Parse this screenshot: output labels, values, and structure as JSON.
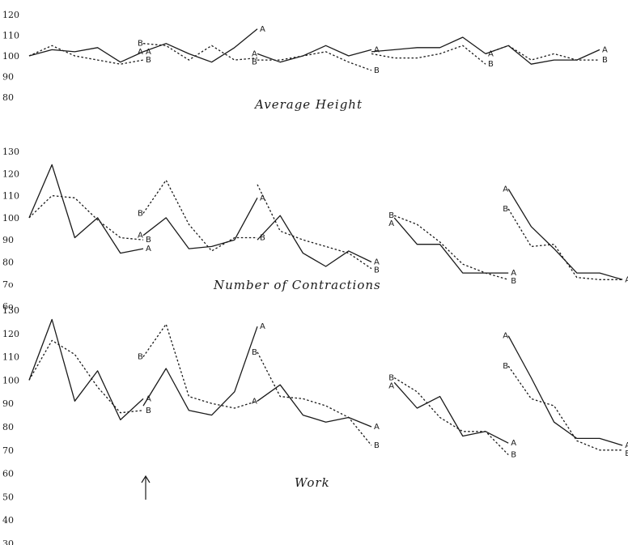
{
  "chart_data": [
    {
      "type": "line",
      "title": "Average Height",
      "yticks": [
        "120",
        "110",
        "100",
        "90",
        "80"
      ],
      "ylim": [
        80,
        120
      ],
      "segments": [
        {
          "x": [
            0,
            1,
            2,
            3,
            4,
            5
          ],
          "A": [
            100,
            103,
            102,
            104,
            97,
            102
          ],
          "B": [
            100,
            105,
            100,
            98,
            96,
            98
          ],
          "labels": {
            "end": [
              "A",
              "B"
            ]
          }
        },
        {
          "x": [
            5,
            6,
            7,
            8,
            9,
            10
          ],
          "A": [
            102,
            106,
            101,
            97,
            104,
            113
          ],
          "B": [
            106,
            105,
            98,
            105,
            98,
            99
          ],
          "labels": {
            "start": [
              "A",
              "B"
            ],
            "end": [
              "A"
            ]
          }
        },
        {
          "x": [
            10,
            11,
            12,
            13,
            14,
            15
          ],
          "A": [
            101,
            97,
            100,
            105,
            100,
            103
          ],
          "B": [
            98,
            98,
            100,
            102,
            97,
            93
          ],
          "labels": {
            "start": [
              "A",
              "B"
            ],
            "end": [
              "A",
              "B"
            ]
          }
        },
        {
          "x": [
            15,
            16,
            17,
            18,
            19,
            20
          ],
          "A": [
            102,
            103,
            104,
            104,
            109,
            101
          ],
          "B": [
            101,
            99,
            99,
            101,
            105,
            96
          ],
          "labels": {
            "end": [
              "A",
              "B"
            ]
          }
        },
        {
          "x": [
            20,
            21,
            22,
            23,
            24,
            25
          ],
          "A": [
            101,
            105,
            96,
            98,
            98,
            103
          ],
          "B": [
            101,
            105,
            98,
            101,
            98,
            98
          ],
          "labels": {
            "end": [
              "A",
              "B"
            ]
          }
        }
      ]
    },
    {
      "type": "line",
      "title": "Number of Contractions",
      "yticks": [
        "130",
        "120",
        "110",
        "100",
        "90",
        "80",
        "7o",
        "6o"
      ],
      "ylim": [
        60,
        130
      ],
      "segments": [
        {
          "x": [
            0,
            1,
            2,
            3,
            4,
            5
          ],
          "A": [
            100,
            124,
            91,
            100,
            84,
            86
          ],
          "B": [
            100,
            110,
            109,
            99,
            91,
            90
          ],
          "labels": {
            "end": [
              "A",
              "B"
            ]
          }
        },
        {
          "x": [
            5,
            6,
            7,
            8,
            9,
            10
          ],
          "A": [
            92,
            100,
            86,
            87,
            90,
            109
          ],
          "B": [
            102,
            117,
            97,
            85,
            91,
            91
          ],
          "labels": {
            "start": [
              "B",
              "A"
            ],
            "end": [
              "B",
              "A"
            ]
          }
        },
        {
          "x": [
            10,
            11,
            12,
            13,
            14,
            15
          ],
          "A": [
            90,
            101,
            84,
            78,
            85,
            80
          ],
          "B": [
            115,
            94,
            90,
            87,
            84,
            77
          ],
          "labels": {
            "end": [
              "A",
              "B"
            ]
          }
        },
        {
          "x": [
            16,
            17,
            18,
            19,
            20,
            21
          ],
          "A": [
            100,
            88,
            88,
            75,
            75,
            75
          ],
          "B": [
            101,
            97,
            89,
            79,
            75,
            72
          ],
          "labels": {
            "start": [
              "B",
              "A"
            ],
            "end": [
              "A",
              "B"
            ]
          }
        },
        {
          "x": [
            21,
            22,
            23,
            24,
            25,
            26
          ],
          "A": [
            113,
            96,
            86,
            75,
            75,
            72
          ],
          "B": [
            104,
            87,
            88,
            73,
            72,
            72
          ],
          "labels": {
            "start": [
              "A",
              "B"
            ],
            "end": [
              "AB"
            ]
          }
        }
      ]
    },
    {
      "type": "line",
      "title": "Work",
      "yticks": [
        "130",
        "120",
        "110",
        "100",
        "90",
        "80",
        "70",
        "60",
        "50",
        "40",
        "30"
      ],
      "ylim": [
        30,
        130
      ],
      "segments": [
        {
          "x": [
            0,
            1,
            2,
            3,
            4,
            5
          ],
          "A": [
            100,
            126,
            91,
            104,
            83,
            92
          ],
          "B": [
            100,
            117,
            111,
            97,
            86,
            87
          ],
          "labels": {
            "end": [
              "A",
              "B"
            ]
          }
        },
        {
          "x": [
            5,
            6,
            7,
            8,
            9,
            10
          ],
          "A": [
            89,
            105,
            87,
            85,
            95,
            123
          ],
          "B": [
            110,
            124,
            93,
            90,
            88,
            91
          ],
          "labels": {
            "start": [
              "B"
            ],
            "end": [
              "A"
            ]
          }
        },
        {
          "x": [
            10,
            11,
            12,
            13,
            14,
            15
          ],
          "A": [
            91,
            98,
            85,
            82,
            84,
            80
          ],
          "B": [
            112,
            93,
            92,
            89,
            84,
            72
          ],
          "labels": {
            "start": [
              "B",
              "A"
            ],
            "end": [
              "A",
              "B"
            ]
          }
        },
        {
          "x": [
            16,
            17,
            18,
            19,
            20,
            21
          ],
          "A": [
            99,
            88,
            93,
            76,
            78,
            73
          ],
          "B": [
            101,
            95,
            84,
            78,
            78,
            68
          ],
          "labels": {
            "start": [
              "B",
              "A"
            ],
            "end": [
              "A",
              "B"
            ]
          }
        },
        {
          "x": [
            21,
            22,
            23,
            24,
            25,
            26
          ],
          "A": [
            119,
            101,
            82,
            75,
            75,
            72
          ],
          "B": [
            106,
            92,
            89,
            74,
            70,
            70
          ],
          "labels": {
            "start": [
              "A",
              "B"
            ],
            "end": [
              "A",
              "B"
            ]
          }
        }
      ]
    }
  ]
}
